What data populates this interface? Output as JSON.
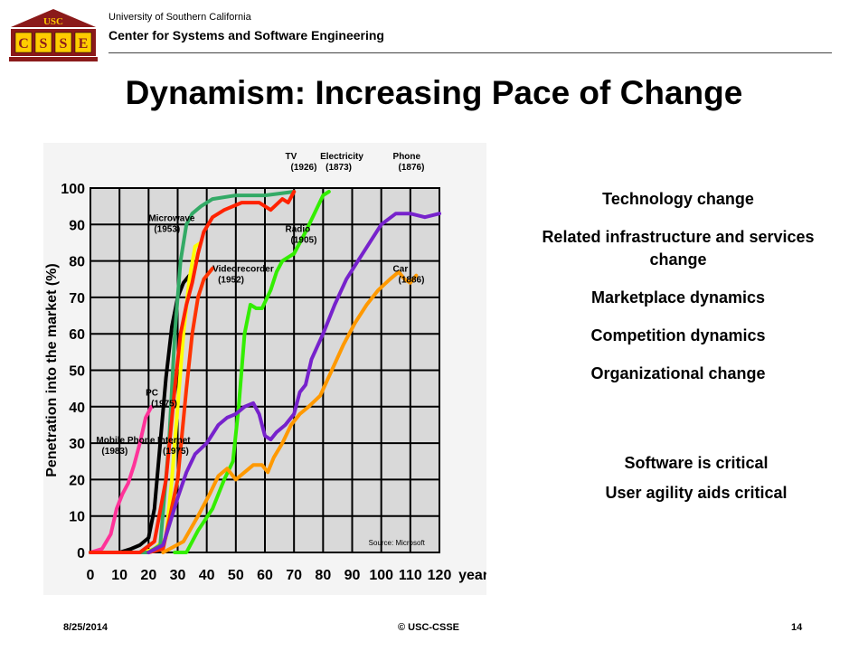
{
  "header": {
    "logo_text": "USC",
    "logo_letters": [
      "C",
      "S",
      "S",
      "E"
    ],
    "org_line1": "University of Southern California",
    "org_line2": "Center for Systems and Software Engineering"
  },
  "slide_title": "Dynamism: Increasing Pace of Change",
  "bullets": [
    "Technology change",
    "Related infrastructure and services change",
    "Marketplace dynamics",
    "Competition dynamics",
    "Organizational change"
  ],
  "critical": [
    "Software is critical",
    "User agility aids critical"
  ],
  "footer": {
    "date": "8/25/2014",
    "copyright": "© USC-CSSE",
    "page": "14"
  },
  "chart_data": {
    "type": "line",
    "xlabel": "years",
    "ylabel": "Penetration into the market (%)",
    "xlim": [
      0,
      120
    ],
    "ylim": [
      0,
      100
    ],
    "xticks": [
      0,
      10,
      20,
      30,
      40,
      50,
      60,
      70,
      80,
      90,
      100,
      110,
      120
    ],
    "yticks": [
      0,
      10,
      20,
      30,
      40,
      50,
      60,
      70,
      80,
      90,
      100
    ],
    "source": "Source: Microsoft",
    "grid": true,
    "background": "#d9d9d9",
    "series": [
      {
        "name": "Mobile Phone",
        "year": "(1983)",
        "color": "#ff3399",
        "points": [
          [
            0,
            0
          ],
          [
            4,
            1
          ],
          [
            7,
            5
          ],
          [
            9,
            12
          ],
          [
            11,
            16
          ],
          [
            13,
            19
          ],
          [
            15,
            24
          ],
          [
            17,
            30
          ],
          [
            19,
            37
          ],
          [
            21,
            40
          ]
        ]
      },
      {
        "name": "PC",
        "year": "(1975)",
        "color": "#000000",
        "points": [
          [
            0,
            0
          ],
          [
            10,
            0
          ],
          [
            14,
            1
          ],
          [
            17,
            2
          ],
          [
            20,
            4
          ],
          [
            22,
            12
          ],
          [
            24,
            30
          ],
          [
            26,
            48
          ],
          [
            28,
            62
          ],
          [
            30,
            70
          ],
          [
            32,
            74
          ],
          [
            34,
            76
          ]
        ]
      },
      {
        "name": "Internet",
        "year": "(1975)",
        "color": "#ffff00",
        "points": [
          [
            18,
            0
          ],
          [
            22,
            1
          ],
          [
            26,
            4
          ],
          [
            28,
            20
          ],
          [
            30,
            40
          ],
          [
            32,
            60
          ],
          [
            34,
            75
          ],
          [
            36,
            84
          ],
          [
            38,
            85
          ]
        ]
      },
      {
        "name": "Microwave",
        "year": "(1953)",
        "color": "#33aa66",
        "points": [
          [
            0,
            0
          ],
          [
            20,
            0
          ],
          [
            24,
            2
          ],
          [
            27,
            30
          ],
          [
            29,
            60
          ],
          [
            31,
            80
          ],
          [
            33,
            90
          ],
          [
            35,
            93
          ],
          [
            38,
            95
          ],
          [
            42,
            97
          ],
          [
            50,
            98
          ],
          [
            60,
            98
          ],
          [
            70,
            99
          ]
        ]
      },
      {
        "name": "TV",
        "year": "(1926)",
        "color": "#ff2200",
        "points": [
          [
            0,
            0
          ],
          [
            17,
            0
          ],
          [
            22,
            3
          ],
          [
            26,
            20
          ],
          [
            29,
            45
          ],
          [
            31,
            60
          ],
          [
            33,
            68
          ],
          [
            35,
            74
          ],
          [
            37,
            82
          ],
          [
            39,
            88
          ],
          [
            42,
            92
          ],
          [
            46,
            94
          ],
          [
            52,
            96
          ],
          [
            58,
            96
          ],
          [
            62,
            94
          ],
          [
            66,
            97
          ],
          [
            68,
            96
          ],
          [
            70,
            99
          ]
        ]
      },
      {
        "name": "Videorecorder",
        "year": "(1952)",
        "color": "#ff3300",
        "points": [
          [
            20,
            0
          ],
          [
            25,
            1
          ],
          [
            30,
            20
          ],
          [
            33,
            45
          ],
          [
            35,
            60
          ],
          [
            37,
            70
          ],
          [
            39,
            75
          ],
          [
            42,
            78
          ]
        ]
      },
      {
        "name": "Radio",
        "year": "(1905)",
        "color": "#33ee00",
        "points": [
          [
            29,
            0
          ],
          [
            33,
            0
          ],
          [
            37,
            6
          ],
          [
            42,
            12
          ],
          [
            46,
            20
          ],
          [
            49,
            25
          ],
          [
            51,
            40
          ],
          [
            53,
            60
          ],
          [
            55,
            68
          ],
          [
            57,
            67
          ],
          [
            59,
            67
          ],
          [
            62,
            72
          ],
          [
            64,
            77
          ],
          [
            66,
            80
          ],
          [
            70,
            82
          ],
          [
            74,
            88
          ],
          [
            77,
            93
          ],
          [
            80,
            98
          ],
          [
            82,
            99
          ]
        ]
      },
      {
        "name": "Electricity",
        "year": "(1873)",
        "color": "#7722cc",
        "points": [
          [
            20,
            0
          ],
          [
            25,
            2
          ],
          [
            30,
            15
          ],
          [
            33,
            22
          ],
          [
            36,
            27
          ],
          [
            40,
            30
          ],
          [
            44,
            35
          ],
          [
            47,
            37
          ],
          [
            50,
            38
          ],
          [
            53,
            40
          ],
          [
            56,
            41
          ],
          [
            58,
            38
          ],
          [
            60,
            32
          ],
          [
            62,
            31
          ],
          [
            64,
            33
          ],
          [
            67,
            35
          ],
          [
            70,
            38
          ],
          [
            72,
            44
          ],
          [
            74,
            46
          ],
          [
            76,
            53
          ],
          [
            80,
            60
          ],
          [
            84,
            68
          ],
          [
            88,
            75
          ],
          [
            92,
            80
          ],
          [
            96,
            85
          ],
          [
            100,
            90
          ],
          [
            105,
            93
          ],
          [
            110,
            93
          ],
          [
            115,
            92
          ],
          [
            120,
            93
          ]
        ]
      },
      {
        "name": "Car",
        "year": "(1886)",
        "color": "#ff9900",
        "points": [
          [
            25,
            0
          ],
          [
            32,
            3
          ],
          [
            37,
            10
          ],
          [
            41,
            16
          ],
          [
            44,
            21
          ],
          [
            47,
            23
          ],
          [
            50,
            20
          ],
          [
            53,
            22
          ],
          [
            56,
            24
          ],
          [
            59,
            24
          ],
          [
            61,
            22
          ],
          [
            63,
            26
          ],
          [
            66,
            30
          ],
          [
            69,
            35
          ],
          [
            72,
            38
          ],
          [
            75,
            40
          ],
          [
            79,
            43
          ],
          [
            83,
            50
          ],
          [
            87,
            57
          ],
          [
            91,
            63
          ],
          [
            95,
            68
          ],
          [
            99,
            72
          ],
          [
            103,
            75
          ],
          [
            106,
            77
          ],
          [
            108,
            75
          ],
          [
            110,
            74
          ],
          [
            112,
            76
          ]
        ]
      },
      {
        "name": "Phone",
        "year": "(1876)",
        "color": "#000000",
        "label_only": true
      }
    ]
  }
}
